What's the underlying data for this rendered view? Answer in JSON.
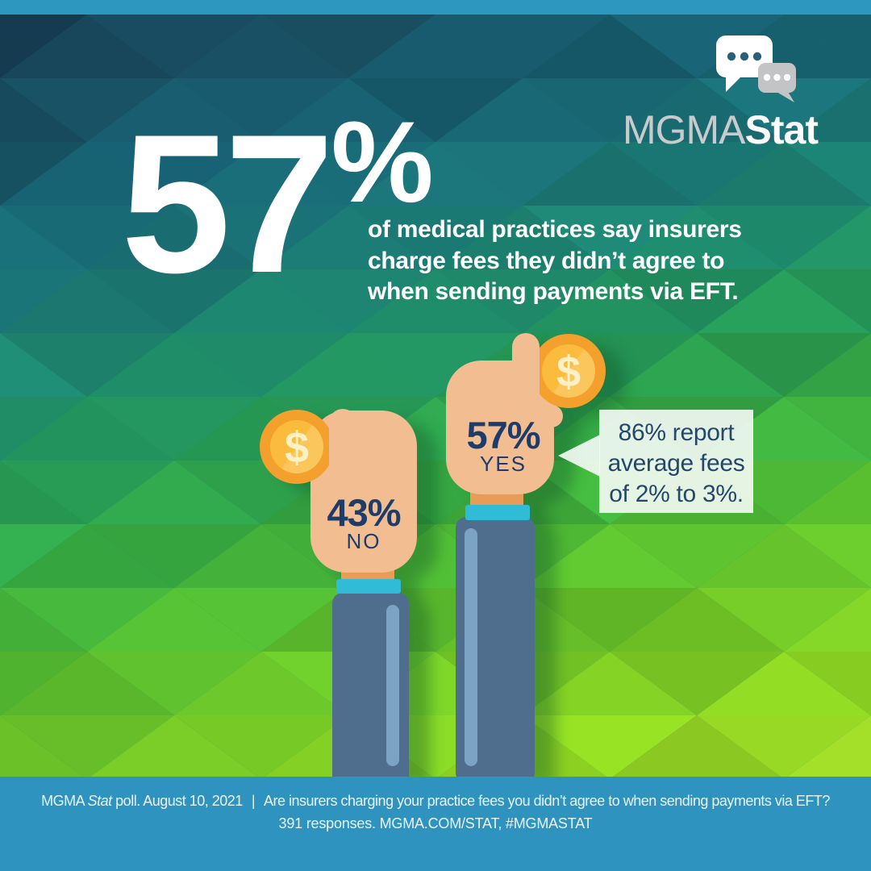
{
  "logo": {
    "mgma": "MGMA",
    "stat": "Stat",
    "icon": "speech-bubbles"
  },
  "headline": {
    "value": "57",
    "percent_sign": "%",
    "lines": [
      "of medical practices say insurers",
      "charge fees they didn’t agree to",
      "when sending payments via EFT."
    ]
  },
  "poll": {
    "no": {
      "percent": "43%",
      "label": "NO",
      "coin_symbol": "$"
    },
    "yes": {
      "percent": "57%",
      "label": "YES",
      "coin_symbol": "$"
    }
  },
  "callout": {
    "lines": [
      "86% report",
      "average fees",
      "of 2% to 3%."
    ]
  },
  "footer": {
    "prefix": "MGMA",
    "brand_italic": "Stat",
    "poll_info": "poll. August 10, 2021",
    "divider": "|",
    "question": "Are insurers charging your practice fees you didn’t agree to when sending payments via EFT?",
    "line2": "391 responses. MGMA.COM/STAT, #MGMASTAT"
  },
  "colors": {
    "accent_blue": "#2E94BF",
    "navy_text": "#1E3C6B",
    "white": "#FFFFFF",
    "skin": "#F2BD91",
    "coin_ring": "#F4A02C",
    "coin_face": "#FBBB3D",
    "coin_symbol": "#FCF0C5",
    "cuff_cyan": "#30BCD7",
    "wrist_orange": "#E99C56",
    "sleeve_blue": "#4F6E8E",
    "sleeve_highlight": "#7CA2C4",
    "logo_gray": "#C8CACC",
    "bubble_dot_teal": "#2A6176",
    "mosaic_stops": [
      [
        0.0,
        "#16394f"
      ],
      [
        0.1,
        "#194e61"
      ],
      [
        0.2,
        "#176071"
      ],
      [
        0.3,
        "#1b7678"
      ],
      [
        0.4,
        "#1f8b6e"
      ],
      [
        0.5,
        "#279c58"
      ],
      [
        0.6,
        "#38ac42"
      ],
      [
        0.7,
        "#55bb30"
      ],
      [
        0.8,
        "#73c928"
      ],
      [
        0.9,
        "#8ed322"
      ],
      [
        1.0,
        "#a5dc2a"
      ]
    ]
  },
  "chart_data": {
    "type": "bar",
    "title": "57% of medical practices say insurers charge fees they didn’t agree to when sending payments via EFT.",
    "categories": [
      "YES",
      "NO"
    ],
    "values": [
      57,
      43
    ],
    "annotations": [
      "86% report average fees of 2% to 3%."
    ],
    "source": "MGMA Stat poll. August 10, 2021",
    "responses": "391 responses",
    "legend_position": "none",
    "units": "percent"
  }
}
